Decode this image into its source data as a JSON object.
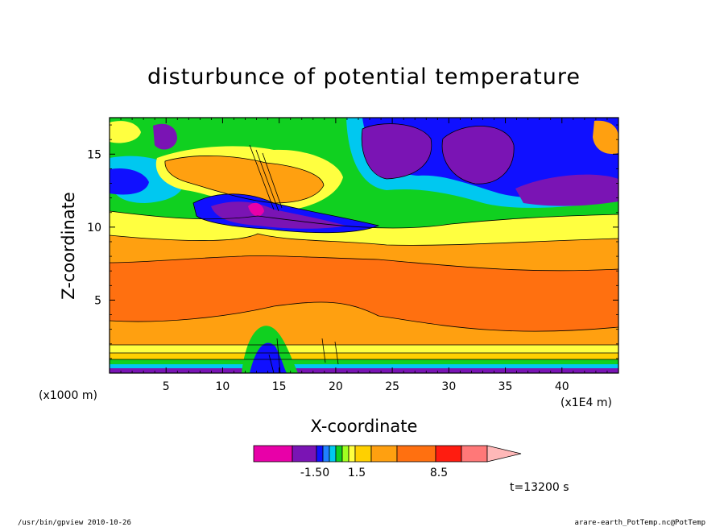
{
  "chart_data": {
    "type": "heatmap",
    "title": "disturbunce of potential temperature",
    "xlabel": "X-coordinate",
    "ylabel": "Z-coordinate",
    "x_unit_label": "(x1000 m)",
    "x_scale_label": "(x1E4 m)",
    "xlim": [
      0,
      45
    ],
    "ylim": [
      0,
      17.5
    ],
    "x_ticks": [
      5,
      10,
      15,
      20,
      25,
      30,
      35,
      40
    ],
    "y_ticks": [
      5,
      10,
      15
    ],
    "colorbar_labels": [
      {
        "text": "-1.50",
        "value": -1.5
      },
      {
        "text": "1.5",
        "value": 1.5
      },
      {
        "text": "8.5",
        "value": 8.5
      }
    ],
    "colorbar_colors": [
      "#e800a8",
      "#7a14b4",
      "#1010ff",
      "#2080ff",
      "#00c8f0",
      "#10d020",
      "#a0ff20",
      "#ffff40",
      "#ffd000",
      "#ffa010",
      "#ff7010",
      "#ff1c10",
      "#ff7878",
      "#ffb8b8"
    ],
    "time_label": "t=13200 s",
    "footer_left": "/usr/bin/gpview  2010-10-26",
    "footer_right": "arare-earth_PotTemp.nc@PotTemp"
  }
}
